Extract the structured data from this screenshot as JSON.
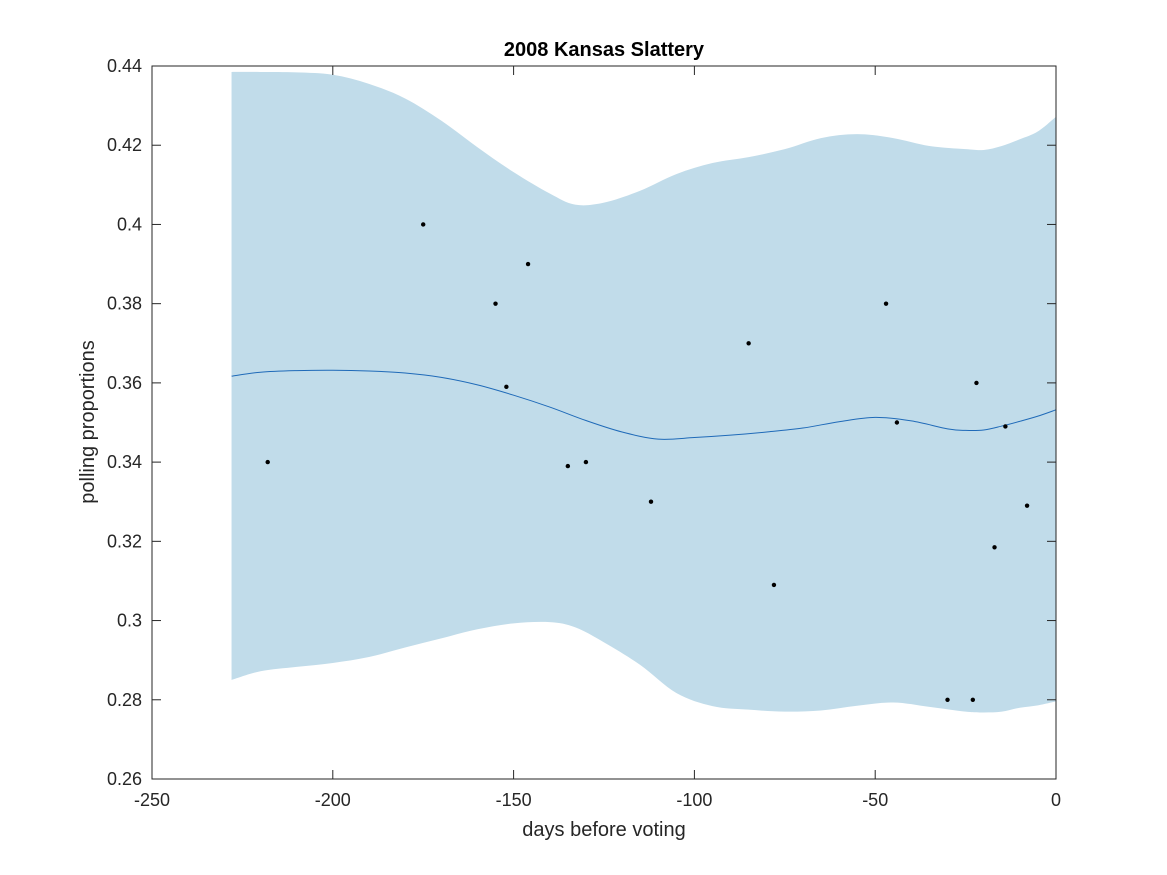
{
  "chart_data": {
    "type": "line",
    "title": "2008 Kansas Slattery",
    "xlabel": "days before voting",
    "ylabel": "polling proportions",
    "xlim": [
      -250,
      0
    ],
    "ylim": [
      0.26,
      0.44
    ],
    "xticks": [
      -250,
      -200,
      -150,
      -100,
      -50,
      0
    ],
    "xtick_labels": [
      "-250",
      "-200",
      "-150",
      "-100",
      "-50",
      "0"
    ],
    "yticks": [
      0.26,
      0.28,
      0.3,
      0.32,
      0.34,
      0.36,
      0.38,
      0.4,
      0.42,
      0.44
    ],
    "ytick_labels": [
      "0.26",
      "0.28",
      "0.3",
      "0.32",
      "0.34",
      "0.36",
      "0.38",
      "0.4",
      "0.42",
      "0.44"
    ],
    "grid": false,
    "colors": {
      "band": "#c1dcea",
      "trend": "#1f6ab8",
      "points": "#000000",
      "axis": "#262626"
    },
    "series": [
      {
        "kind": "band",
        "x": [
          -228,
          -220,
          -210,
          -200,
          -190,
          -180,
          -170,
          -160,
          -150,
          -140,
          -133,
          -125,
          -115,
          -105,
          -95,
          -85,
          -75,
          -65,
          -55,
          -45,
          -35,
          -25,
          -20,
          -15,
          -10,
          -5,
          0
        ],
        "upper": [
          0.4385,
          0.4385,
          0.4384,
          0.4378,
          0.4355,
          0.4318,
          0.4262,
          0.4195,
          0.4132,
          0.4078,
          0.405,
          0.4055,
          0.4085,
          0.4127,
          0.4155,
          0.417,
          0.419,
          0.4218,
          0.4228,
          0.4218,
          0.4198,
          0.419,
          0.4188,
          0.4198,
          0.4215,
          0.4235,
          0.4272
        ],
        "lower": [
          0.285,
          0.2872,
          0.2883,
          0.2893,
          0.2908,
          0.2932,
          0.2955,
          0.2978,
          0.2993,
          0.2996,
          0.2983,
          0.2945,
          0.2888,
          0.2817,
          0.2784,
          0.2775,
          0.277,
          0.2773,
          0.2785,
          0.2793,
          0.2782,
          0.277,
          0.2768,
          0.277,
          0.278,
          0.2786,
          0.2796
        ]
      },
      {
        "kind": "line",
        "x": [
          -228,
          -220,
          -210,
          -200,
          -190,
          -180,
          -170,
          -160,
          -150,
          -140,
          -130,
          -120,
          -110,
          -100,
          -90,
          -80,
          -70,
          -60,
          -50,
          -40,
          -30,
          -25,
          -20,
          -15,
          -10,
          -5,
          0
        ],
        "y": [
          0.3617,
          0.3627,
          0.3631,
          0.3632,
          0.363,
          0.3625,
          0.3614,
          0.3595,
          0.3569,
          0.3539,
          0.3505,
          0.3476,
          0.3458,
          0.3462,
          0.3468,
          0.3476,
          0.3486,
          0.3502,
          0.3513,
          0.3504,
          0.3484,
          0.348,
          0.3481,
          0.3491,
          0.3503,
          0.3516,
          0.3532
        ]
      },
      {
        "kind": "scatter",
        "x": [
          -218,
          -175,
          -155,
          -152,
          -146,
          -135,
          -130,
          -112,
          -85,
          -78,
          -47,
          -44,
          -30,
          -23,
          -22,
          -17,
          -14,
          -8
        ],
        "y": [
          0.34,
          0.4,
          0.38,
          0.359,
          0.39,
          0.339,
          0.34,
          0.33,
          0.37,
          0.309,
          0.38,
          0.35,
          0.28,
          0.28,
          0.36,
          0.3185,
          0.349,
          0.329
        ]
      }
    ]
  }
}
